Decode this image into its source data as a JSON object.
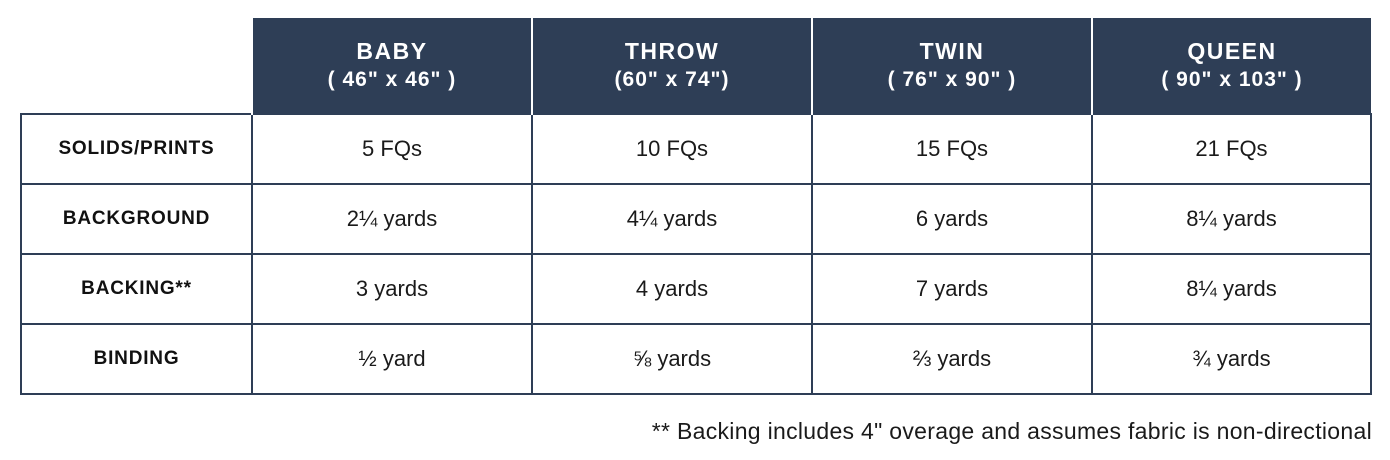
{
  "columns": [
    {
      "name": "BABY",
      "dims": "( 46\" x 46\" )"
    },
    {
      "name": "THROW",
      "dims": "(60\" x 74\")"
    },
    {
      "name": "TWIN",
      "dims": "( 76\" x 90\" )"
    },
    {
      "name": "QUEEN",
      "dims": "( 90\" x 103\" )"
    }
  ],
  "rows": [
    {
      "label": "SOLIDS/PRINTS",
      "values": [
        "5 FQs",
        "10 FQs",
        "15 FQs",
        "21 FQs"
      ]
    },
    {
      "label": "BACKGROUND",
      "values": [
        "2¼ yards",
        "4¼ yards",
        "6 yards",
        "8¼ yards"
      ]
    },
    {
      "label": "BACKING**",
      "values": [
        "3 yards",
        "4 yards",
        "7 yards",
        "8¼ yards"
      ]
    },
    {
      "label": "BINDING",
      "values": [
        "½ yard",
        "⅝ yards",
        "⅔ yards",
        "¾ yards"
      ]
    }
  ],
  "footnote": "** Backing includes 4\" overage and assumes fabric is non-directional",
  "colors": {
    "header_bg": "#2e3e56",
    "header_text": "#ffffff",
    "border": "#2e3e56"
  }
}
